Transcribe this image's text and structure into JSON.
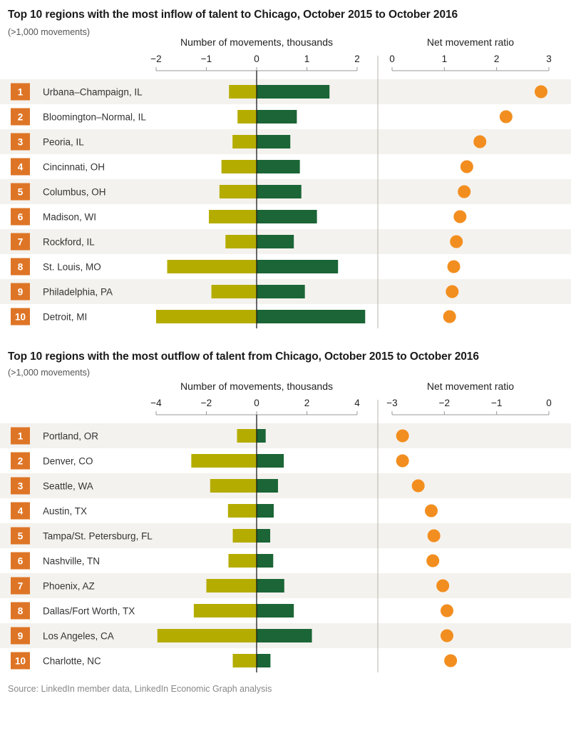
{
  "chart_data": [
    {
      "type": "bar",
      "title": "Top 10 regions with the most inflow of talent to Chicago, October 2015 to October 2016",
      "subtitle": "(>1,000 movements)",
      "xlabel": "Number of movements, thousands",
      "xlabel2": "Net movement ratio",
      "xlim": [
        -2,
        2
      ],
      "xticks": [
        "−2",
        "−1",
        "0",
        "1",
        "2"
      ],
      "ratio_lim": [
        0,
        3
      ],
      "ratio_ticks": [
        "0",
        "1",
        "2",
        "3"
      ],
      "colors": {
        "outflow": "#b5ac00",
        "inflow": "#1b6536",
        "ratio": "#f28e1f",
        "rank_box": "#de7526",
        "stripe": "#f4f2ee"
      },
      "rows": [
        {
          "rank": "1",
          "name": "Urbana–Champaign, IL",
          "out": -0.55,
          "in": 1.45,
          "ratio": 2.85
        },
        {
          "rank": "2",
          "name": "Bloomington–Normal, IL",
          "out": -0.38,
          "in": 0.8,
          "ratio": 2.18
        },
        {
          "rank": "3",
          "name": "Peoria, IL",
          "out": -0.48,
          "in": 0.67,
          "ratio": 1.68
        },
        {
          "rank": "4",
          "name": "Cincinnati, OH",
          "out": -0.7,
          "in": 0.86,
          "ratio": 1.43
        },
        {
          "rank": "5",
          "name": "Columbus, OH",
          "out": -0.74,
          "in": 0.89,
          "ratio": 1.38
        },
        {
          "rank": "6",
          "name": "Madison, WI",
          "out": -0.95,
          "in": 1.2,
          "ratio": 1.3
        },
        {
          "rank": "7",
          "name": "Rockford, IL",
          "out": -0.62,
          "in": 0.74,
          "ratio": 1.23
        },
        {
          "rank": "8",
          "name": "St. Louis, MO",
          "out": -1.78,
          "in": 1.62,
          "ratio": 1.18
        },
        {
          "rank": "9",
          "name": "Philadelphia, PA",
          "out": -0.9,
          "in": 0.96,
          "ratio": 1.15
        },
        {
          "rank": "10",
          "name": "Detroit, MI",
          "out": -2.0,
          "in": 2.16,
          "ratio": 1.1
        }
      ]
    },
    {
      "type": "bar",
      "title": "Top 10 regions with the most outflow of talent from Chicago, October 2015 to October 2016",
      "subtitle": "(>1,000 movements)",
      "xlabel": "Number of movements, thousands",
      "xlabel2": "Net movement ratio",
      "xlim": [
        -4,
        4
      ],
      "xticks": [
        "−4",
        "−2",
        "0",
        "2",
        "4"
      ],
      "ratio_lim": [
        -3,
        0
      ],
      "ratio_ticks": [
        "−3",
        "−2",
        "−1",
        "0"
      ],
      "colors": {
        "outflow": "#b5ac00",
        "inflow": "#1b6536",
        "ratio": "#f28e1f",
        "rank_box": "#de7526",
        "stripe": "#f4f2ee"
      },
      "rows": [
        {
          "rank": "1",
          "name": "Portland, OR",
          "out": -0.78,
          "in": 0.36,
          "ratio": -2.8
        },
        {
          "rank": "2",
          "name": "Denver, CO",
          "out": -2.6,
          "in": 1.08,
          "ratio": -2.8
        },
        {
          "rank": "3",
          "name": "Seattle, WA",
          "out": -1.85,
          "in": 0.85,
          "ratio": -2.5
        },
        {
          "rank": "4",
          "name": "Austin, TX",
          "out": -1.14,
          "in": 0.68,
          "ratio": -2.25
        },
        {
          "rank": "5",
          "name": "Tampa/St. Petersburg, FL",
          "out": -0.95,
          "in": 0.54,
          "ratio": -2.2
        },
        {
          "rank": "6",
          "name": "Nashville, TN",
          "out": -1.12,
          "in": 0.66,
          "ratio": -2.22
        },
        {
          "rank": "7",
          "name": "Phoenix, AZ",
          "out": -2.0,
          "in": 1.1,
          "ratio": -2.03
        },
        {
          "rank": "8",
          "name": "Dallas/Fort Worth, TX",
          "out": -2.5,
          "in": 1.48,
          "ratio": -1.95
        },
        {
          "rank": "9",
          "name": "Los Angeles, CA",
          "out": -3.95,
          "in": 2.2,
          "ratio": -1.95
        },
        {
          "rank": "10",
          "name": "Charlotte, NC",
          "out": -0.95,
          "in": 0.55,
          "ratio": -1.88
        }
      ]
    }
  ],
  "source": "Source: LinkedIn member data, LinkedIn Economic Graph analysis"
}
